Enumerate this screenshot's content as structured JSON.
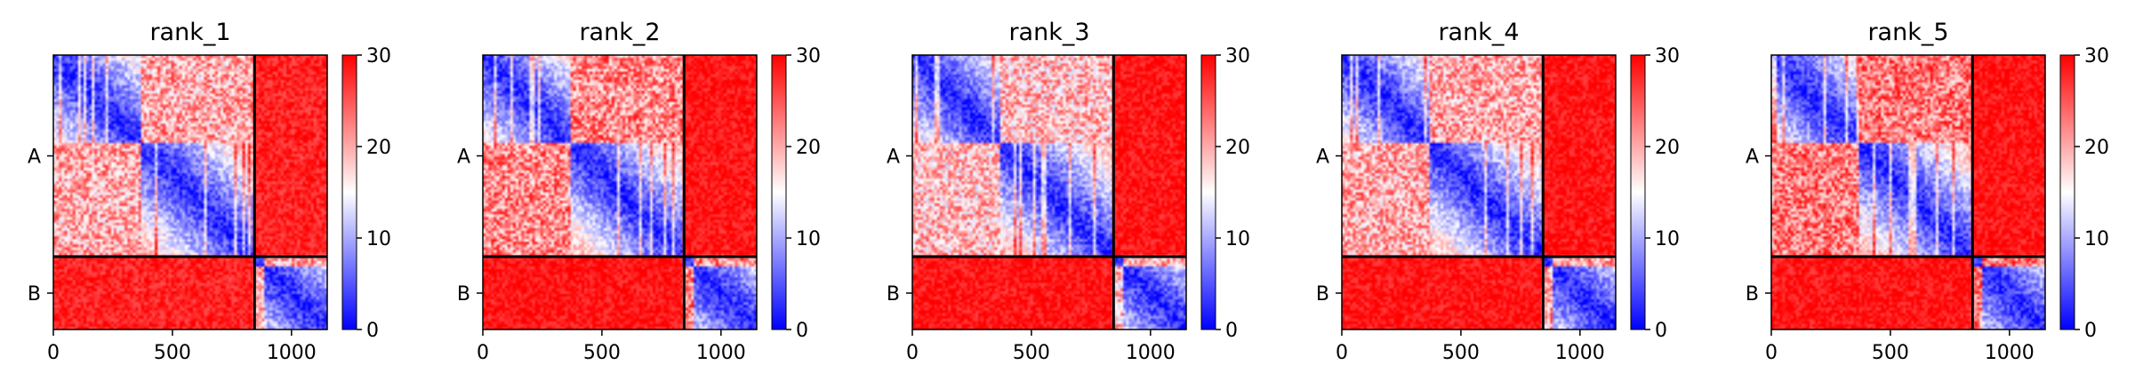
{
  "chart_data": {
    "type": "heatmap",
    "colormap": {
      "name": "bwr",
      "low": "#0000ff",
      "mid": "#ffffff",
      "high": "#ff0000",
      "vmin": 0,
      "vmax": 30
    },
    "colorbar_ticks": [
      "0",
      "10",
      "20",
      "30"
    ],
    "x_ticks": [
      0,
      500,
      1000
    ],
    "xlim": [
      0,
      1150
    ],
    "ylim": [
      1150,
      0
    ],
    "chains": [
      {
        "name": "A",
        "start": 0,
        "end": 845
      },
      {
        "name": "B",
        "start": 845,
        "end": 1150
      }
    ],
    "domains": [
      [
        0,
        370
      ],
      [
        370,
        845
      ],
      [
        845,
        880
      ],
      [
        880,
        1150
      ]
    ],
    "panels": [
      {
        "title": "rank_1",
        "inter_chain_mean": 28,
        "inter_domain_mean": 20
      },
      {
        "title": "rank_2",
        "inter_chain_mean": 29,
        "inter_domain_mean": 22
      },
      {
        "title": "rank_3",
        "inter_chain_mean": 29,
        "inter_domain_mean": 19
      },
      {
        "title": "rank_4",
        "inter_chain_mean": 29,
        "inter_domain_mean": 20
      },
      {
        "title": "rank_5",
        "inter_chain_mean": 29,
        "inter_domain_mean": 23
      }
    ]
  }
}
